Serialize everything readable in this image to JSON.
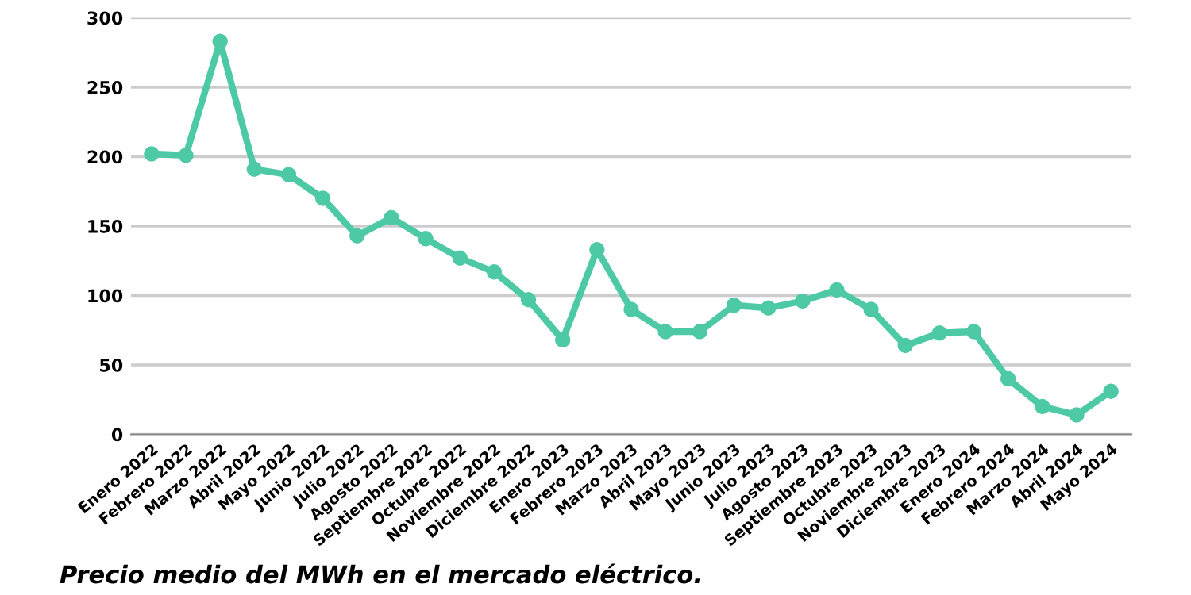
{
  "chart_data": {
    "type": "line",
    "categories": [
      "Enero 2022",
      "Febrero 2022",
      "Marzo 2022",
      "Abril 2022",
      "Mayo 2022",
      "Junio 2022",
      "Julio 2022",
      "Agosto 2022",
      "Septiembre 2022",
      "Octubre 2022",
      "Noviembre 2022",
      "Diciembre 2022",
      "Enero 2023",
      "Febrero 2023",
      "Marzo 2023",
      "Abril 2023",
      "Mayo 2023",
      "Junio 2023",
      "Julio 2023",
      "Agosto 2023",
      "Septiembre 2023",
      "Octubre 2023",
      "Noviembre 2023",
      "Diciembre 2023",
      "Enero 2024",
      "Febrero 2024",
      "Marzo 2024",
      "Abril 2024",
      "Mayo 2024"
    ],
    "series": [
      {
        "color": "#4dc9a6",
        "values": [
          202,
          201,
          283,
          191,
          187,
          170,
          143,
          156,
          141,
          127,
          117,
          97,
          68,
          133,
          90,
          74,
          74,
          93,
          91,
          96,
          104,
          90,
          64,
          73,
          74,
          40,
          20,
          14,
          31
        ]
      }
    ],
    "ylim": [
      0,
      300
    ],
    "yticks": [
      0,
      50,
      100,
      150,
      200,
      250,
      300
    ],
    "grid": "y",
    "marker": "circle",
    "line_style": "solid",
    "legend": false,
    "annotations": [
      "Precio medio del MWh en el mercado eléctrico."
    ]
  }
}
